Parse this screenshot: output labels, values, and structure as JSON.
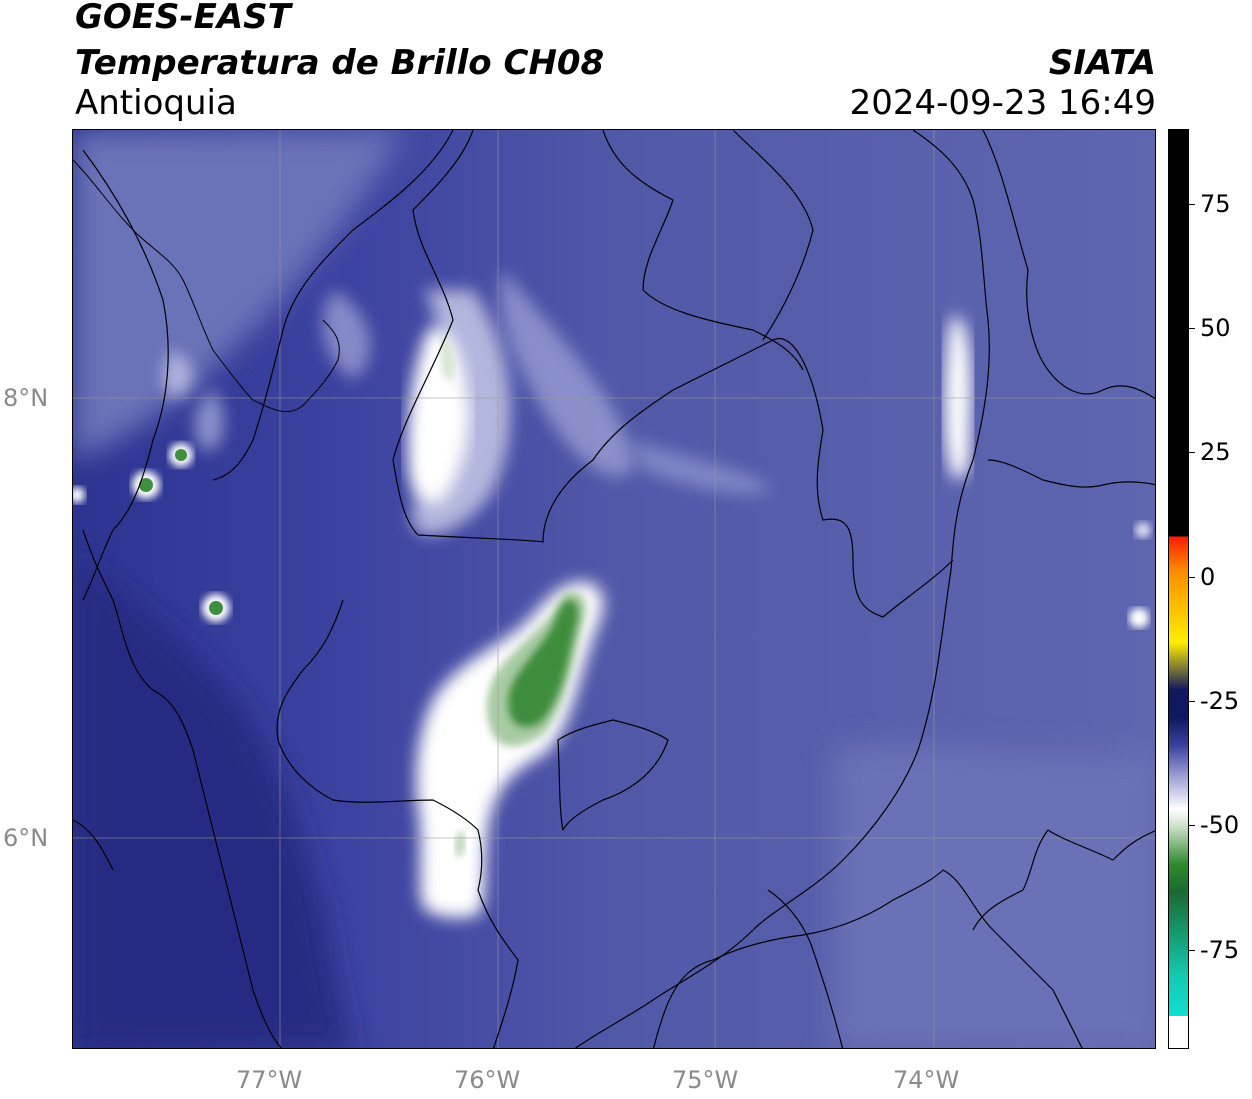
{
  "header": {
    "title_line1": "GOES-EAST",
    "title_line2": "Temperatura de Brillo CH08",
    "region": "Antioquia",
    "organization": "SIATA",
    "timestamp": "2024-09-23 16:49"
  },
  "map": {
    "latitude_labels": [
      "8°N",
      "6°N"
    ],
    "longitude_labels": [
      "77°W",
      "76°W",
      "75°W",
      "74°W"
    ]
  },
  "colorbar": {
    "tick_labels": [
      "75",
      "50",
      "25",
      "0",
      "-25",
      "-50",
      "-75"
    ],
    "tick_values": [
      75,
      50,
      25,
      0,
      -25,
      -50,
      -75
    ],
    "range": [
      -95,
      90
    ],
    "colors": {
      "warm": "#000000",
      "red": "#ff1a00",
      "orange": "#ff8c00",
      "yellow": "#ffee00",
      "dark_navy": "#101860",
      "blue": "#3a40a0",
      "white": "#ffffff",
      "green": "#2e8a2e",
      "cyan": "#10e0d0"
    }
  }
}
